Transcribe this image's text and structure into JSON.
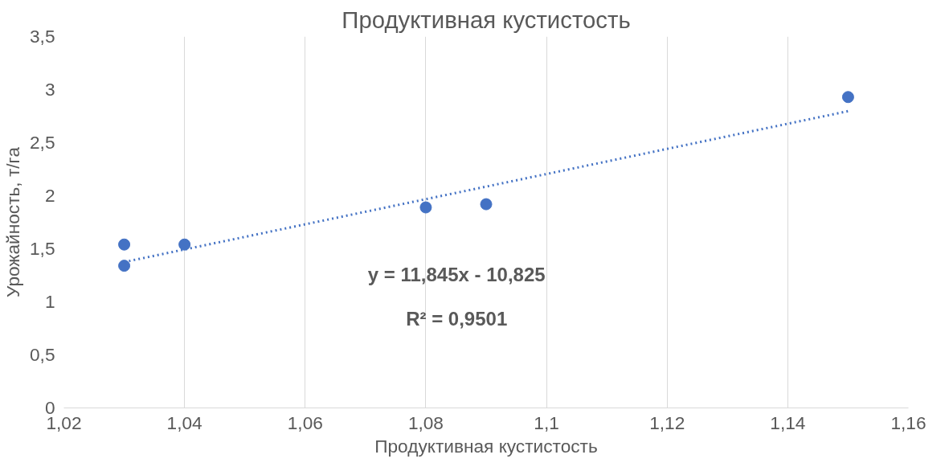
{
  "chart_data": {
    "type": "scatter",
    "title": "Продуктивная кустистость",
    "xlabel": "Продуктивная кустистость",
    "ylabel": "Урожайность, т/га",
    "series": [
      {
        "color": "#4472c4",
        "x": [
          1.03,
          1.03,
          1.04,
          1.08,
          1.09,
          1.15
        ],
        "values": [
          1.54,
          1.34,
          1.54,
          1.89,
          1.92,
          2.93
        ],
        "marker": "circle"
      },
      {
        "type": "line",
        "color": "#4472c4",
        "x": [
          1.03,
          1.15
        ],
        "values": [
          1.375,
          2.797
        ],
        "line_style": "dotted"
      }
    ],
    "annotations": [
      "y = 11,845x - 10,825",
      "R² = 0,9501"
    ],
    "xlim": [
      1.02,
      1.16
    ],
    "xticks": [
      {
        "value": 1.02,
        "label": "1,02"
      },
      {
        "value": 1.04,
        "label": "1,04"
      },
      {
        "value": 1.06,
        "label": "1,06"
      },
      {
        "value": 1.08,
        "label": "1,08"
      },
      {
        "value": 1.1,
        "label": "1,1"
      },
      {
        "value": 1.12,
        "label": "1,12"
      },
      {
        "value": 1.14,
        "label": "1,14"
      },
      {
        "value": 1.16,
        "label": "1,16"
      }
    ],
    "ylim": [
      0,
      3.5
    ],
    "yticks": [
      0,
      {
        "value": 0.5,
        "label": "0,5"
      },
      1,
      {
        "value": 1.5,
        "label": "1,5"
      },
      2,
      {
        "value": 2.5,
        "label": "2,5"
      },
      3,
      {
        "value": 3.5,
        "label": "3,5"
      }
    ],
    "grid": "x"
  }
}
